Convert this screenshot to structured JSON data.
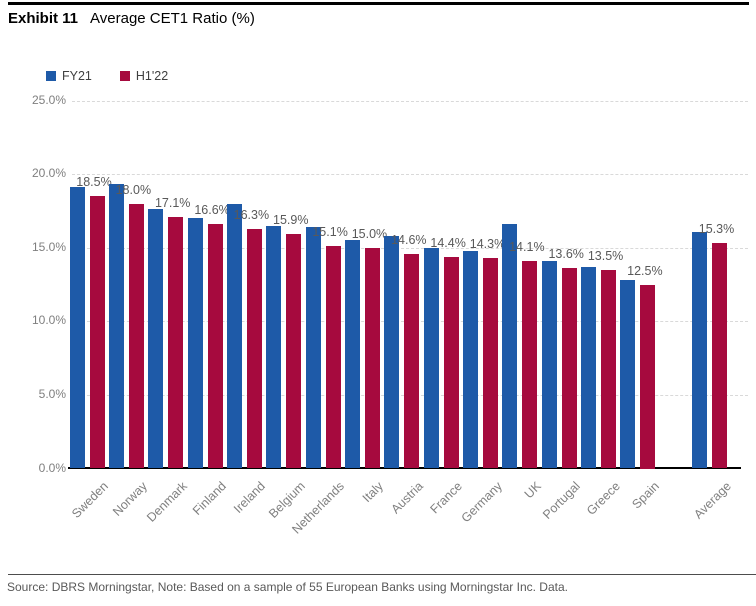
{
  "header": {
    "exhibit_label": "Exhibit 11",
    "title": "Average CET1 Ratio (%)"
  },
  "legend": [
    {
      "label": "FY21",
      "color": "#1e5aa8"
    },
    {
      "label": "H1'22",
      "color": "#a60a3e"
    }
  ],
  "chart_data": {
    "type": "bar",
    "title": "Average CET1 Ratio (%)",
    "categories": [
      "Sweden",
      "Norway",
      "Denmark",
      "Finland",
      "Ireland",
      "Belgium",
      "Netherlands",
      "Italy",
      "Austria",
      "France",
      "Germany",
      "UK",
      "Portugal",
      "Greece",
      "Spain",
      "Average"
    ],
    "series": [
      {
        "name": "FY21",
        "color": "#1e5aa8",
        "values": [
          19.1,
          19.3,
          17.6,
          17.0,
          18.0,
          16.5,
          16.4,
          15.5,
          15.8,
          15.0,
          14.8,
          16.6,
          14.1,
          13.7,
          12.8,
          16.1
        ]
      },
      {
        "name": "H1'22",
        "color": "#a60a3e",
        "values": [
          18.5,
          18.0,
          17.1,
          16.6,
          16.3,
          15.9,
          15.1,
          15.0,
          14.6,
          14.4,
          14.3,
          14.1,
          13.6,
          13.5,
          12.5,
          15.3
        ]
      }
    ],
    "data_labels": [
      "18.5%",
      "18.0%",
      "17.1%",
      "16.6%",
      "16.3%",
      "15.9%",
      "15.1%",
      "15.0%",
      "14.6%",
      "14.4%",
      "14.3%",
      "14.1%",
      "13.6%",
      "13.5%",
      "12.5%",
      "15.3%"
    ],
    "data_labels_series": "H1'22",
    "y_ticks": [
      {
        "label": "25.0%",
        "value": 25
      },
      {
        "label": "20.0%",
        "value": 20
      },
      {
        "label": "15.0%",
        "value": 15
      },
      {
        "label": "10.0%",
        "value": 10
      },
      {
        "label": "5.0%",
        "value": 5
      },
      {
        "label": "0.0%",
        "value": 0
      }
    ],
    "ylim": [
      0,
      25
    ],
    "grid": "horizontal-dashed",
    "legend_position": "top-left",
    "gridline_color": "#d9d9d9",
    "axis_color": "#000000",
    "tick_label_color": "#7f7f7f",
    "category_label_color": "#808080",
    "data_label_color": "#595959"
  },
  "footer": {
    "source": "Source: DBRS Morningstar, Note: Based on a sample of 55 European Banks using Morningstar Inc. Data."
  }
}
